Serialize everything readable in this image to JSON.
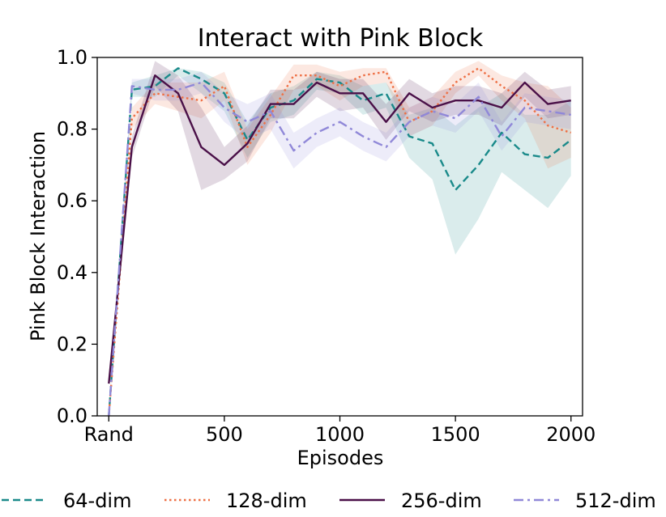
{
  "chart_data": {
    "type": "line",
    "title": "Interact with Pink Block",
    "xlabel": "Episodes",
    "ylabel": "Pink Block Interaction",
    "xlim": [
      -50,
      2050
    ],
    "ylim": [
      0,
      1.0
    ],
    "x_ticks": [
      0,
      500,
      1000,
      1500,
      2000
    ],
    "x_tick_labels": [
      "Rand",
      "500",
      "1000",
      "1500",
      "2000"
    ],
    "y_ticks": [
      0,
      0.2,
      0.4,
      0.6,
      0.8,
      1.0
    ],
    "y_tick_labels": [
      "0.0",
      "0.2",
      "0.4",
      "0.6",
      "0.8",
      "1.0"
    ],
    "grid": false,
    "legend_position": "bottom",
    "x": [
      0,
      100,
      200,
      300,
      400,
      500,
      600,
      700,
      800,
      900,
      1000,
      1100,
      1200,
      1300,
      1400,
      1500,
      1600,
      1700,
      1800,
      1900,
      2000
    ],
    "series": [
      {
        "name": "64-dim",
        "color": "#1a8a8a",
        "dash": "dashed",
        "values": [
          0.0,
          0.91,
          0.92,
          0.97,
          0.94,
          0.9,
          0.77,
          0.86,
          0.88,
          0.94,
          0.93,
          0.88,
          0.9,
          0.78,
          0.76,
          0.63,
          0.7,
          0.79,
          0.73,
          0.72,
          0.77
        ],
        "lower": [
          0.0,
          0.89,
          0.89,
          0.95,
          0.9,
          0.85,
          0.72,
          0.82,
          0.84,
          0.91,
          0.9,
          0.84,
          0.86,
          0.72,
          0.66,
          0.45,
          0.55,
          0.68,
          0.63,
          0.58,
          0.67
        ],
        "upper": [
          0.0,
          0.93,
          0.95,
          0.97,
          0.96,
          0.93,
          0.82,
          0.9,
          0.92,
          0.96,
          0.95,
          0.92,
          0.93,
          0.84,
          0.86,
          0.81,
          0.86,
          0.9,
          0.84,
          0.84,
          0.88
        ]
      },
      {
        "name": "128-dim",
        "color": "#ee7045",
        "dash": "dotted",
        "values": [
          0.0,
          0.83,
          0.9,
          0.89,
          0.88,
          0.92,
          0.75,
          0.84,
          0.95,
          0.95,
          0.92,
          0.95,
          0.96,
          0.82,
          0.85,
          0.93,
          0.97,
          0.92,
          0.88,
          0.81,
          0.79
        ],
        "lower": [
          0.0,
          0.8,
          0.87,
          0.85,
          0.83,
          0.88,
          0.7,
          0.79,
          0.91,
          0.92,
          0.88,
          0.92,
          0.93,
          0.78,
          0.81,
          0.9,
          0.95,
          0.88,
          0.83,
          0.69,
          0.72
        ],
        "upper": [
          0.0,
          0.86,
          0.93,
          0.93,
          0.93,
          0.96,
          0.8,
          0.89,
          0.98,
          0.98,
          0.96,
          0.97,
          0.97,
          0.86,
          0.89,
          0.96,
          0.99,
          0.95,
          0.93,
          0.92,
          0.86
        ]
      },
      {
        "name": "256-dim",
        "color": "#4a1048",
        "dash": "solid",
        "values": [
          0.09,
          0.75,
          0.95,
          0.9,
          0.75,
          0.7,
          0.76,
          0.87,
          0.87,
          0.93,
          0.9,
          0.9,
          0.82,
          0.9,
          0.86,
          0.88,
          0.88,
          0.86,
          0.93,
          0.87,
          0.88
        ],
        "lower": [
          0.09,
          0.72,
          0.92,
          0.85,
          0.63,
          0.66,
          0.71,
          0.83,
          0.83,
          0.89,
          0.85,
          0.86,
          0.77,
          0.85,
          0.82,
          0.84,
          0.84,
          0.81,
          0.89,
          0.83,
          0.84
        ],
        "upper": [
          0.09,
          0.78,
          0.99,
          0.95,
          0.86,
          0.75,
          0.81,
          0.91,
          0.91,
          0.96,
          0.94,
          0.94,
          0.87,
          0.94,
          0.9,
          0.92,
          0.92,
          0.9,
          0.96,
          0.91,
          0.92
        ]
      },
      {
        "name": "512-dim",
        "color": "#9088d8",
        "dash": "dashdot",
        "values": [
          0.0,
          0.92,
          0.91,
          0.91,
          0.93,
          0.86,
          0.82,
          0.85,
          0.74,
          0.79,
          0.82,
          0.78,
          0.75,
          0.82,
          0.85,
          0.83,
          0.89,
          0.78,
          0.86,
          0.85,
          0.84
        ],
        "lower": [
          0.0,
          0.9,
          0.88,
          0.88,
          0.9,
          0.82,
          0.77,
          0.8,
          0.69,
          0.75,
          0.78,
          0.74,
          0.71,
          0.78,
          0.81,
          0.79,
          0.85,
          0.74,
          0.82,
          0.81,
          0.8
        ],
        "upper": [
          0.0,
          0.94,
          0.94,
          0.94,
          0.96,
          0.9,
          0.87,
          0.9,
          0.79,
          0.83,
          0.86,
          0.82,
          0.79,
          0.86,
          0.89,
          0.87,
          0.93,
          0.82,
          0.9,
          0.89,
          0.88
        ]
      }
    ]
  }
}
